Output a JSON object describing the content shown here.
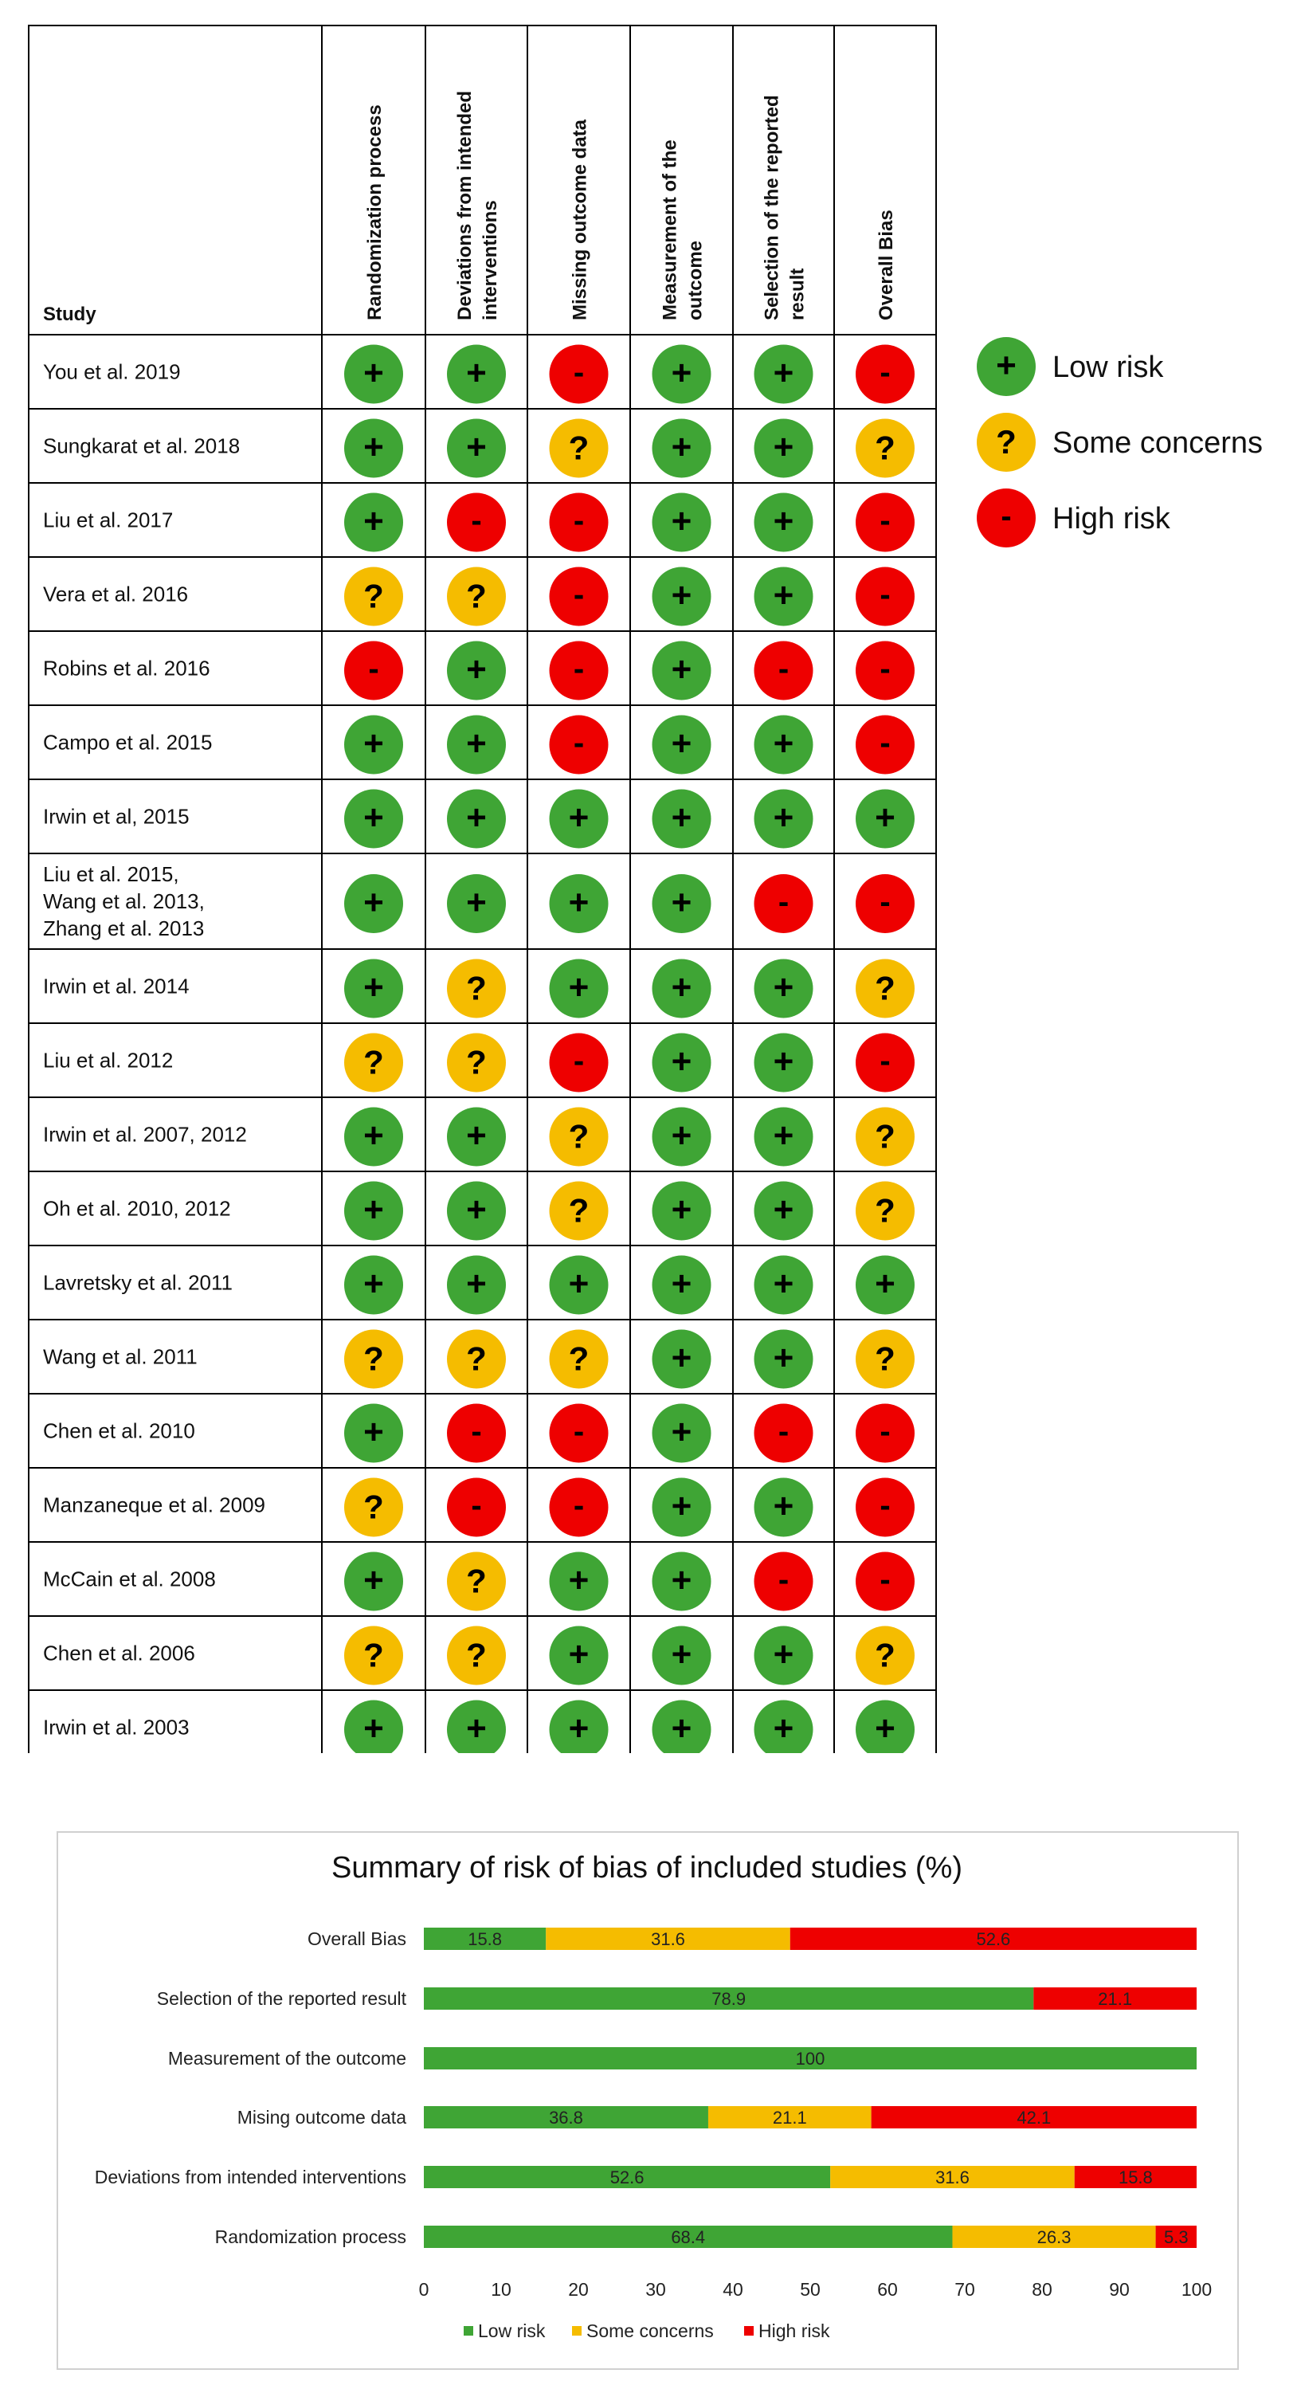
{
  "colors": {
    "low": "#3fa535",
    "some": "#f5bc00",
    "high": "#ee0000",
    "grid": "#000000"
  },
  "rob_table": {
    "study_header": "Study",
    "domains": [
      [
        "Randomization process"
      ],
      [
        "Deviations from intended",
        "interventions"
      ],
      [
        "Missing outcome data"
      ],
      [
        "Measurement of the",
        "outcome"
      ],
      [
        "Selection of the reported",
        "result"
      ],
      [
        "Overall Bias"
      ]
    ],
    "symbols": {
      "low": "+",
      "some": "?",
      "high": "-"
    },
    "rows": [
      {
        "study": [
          "You et al. 2019"
        ],
        "judgements": [
          "low",
          "low",
          "high",
          "low",
          "low",
          "high"
        ]
      },
      {
        "study": [
          "Sungkarat et al. 2018"
        ],
        "judgements": [
          "low",
          "low",
          "some",
          "low",
          "low",
          "some"
        ]
      },
      {
        "study": [
          "Liu et al. 2017"
        ],
        "judgements": [
          "low",
          "high",
          "high",
          "low",
          "low",
          "high"
        ]
      },
      {
        "study": [
          "Vera et al. 2016"
        ],
        "judgements": [
          "some",
          "some",
          "high",
          "low",
          "low",
          "high"
        ]
      },
      {
        "study": [
          "Robins et al. 2016"
        ],
        "judgements": [
          "high",
          "low",
          "high",
          "low",
          "high",
          "high"
        ]
      },
      {
        "study": [
          "Campo et al. 2015"
        ],
        "judgements": [
          "low",
          "low",
          "high",
          "low",
          "low",
          "high"
        ]
      },
      {
        "study": [
          "Irwin et al, 2015"
        ],
        "judgements": [
          "low",
          "low",
          "low",
          "low",
          "low",
          "low"
        ]
      },
      {
        "study": [
          "Liu et al. 2015,",
          "Wang et al. 2013,",
          "Zhang et al. 2013"
        ],
        "judgements": [
          "low",
          "low",
          "low",
          "low",
          "high",
          "high"
        ]
      },
      {
        "study": [
          "Irwin et al. 2014"
        ],
        "judgements": [
          "low",
          "some",
          "low",
          "low",
          "low",
          "some"
        ]
      },
      {
        "study": [
          "Liu et al. 2012"
        ],
        "judgements": [
          "some",
          "some",
          "high",
          "low",
          "low",
          "high"
        ]
      },
      {
        "study": [
          "Irwin et al. 2007, 2012"
        ],
        "judgements": [
          "low",
          "low",
          "some",
          "low",
          "low",
          "some"
        ]
      },
      {
        "study": [
          "Oh et al. 2010, 2012"
        ],
        "judgements": [
          "low",
          "low",
          "some",
          "low",
          "low",
          "some"
        ]
      },
      {
        "study": [
          "Lavretsky et al. 2011"
        ],
        "judgements": [
          "low",
          "low",
          "low",
          "low",
          "low",
          "low"
        ]
      },
      {
        "study": [
          "Wang et al. 2011"
        ],
        "judgements": [
          "some",
          "some",
          "some",
          "low",
          "low",
          "some"
        ]
      },
      {
        "study": [
          "Chen et al. 2010"
        ],
        "judgements": [
          "low",
          "high",
          "high",
          "low",
          "high",
          "high"
        ]
      },
      {
        "study": [
          "Manzaneque et al. 2009"
        ],
        "judgements": [
          "some",
          "high",
          "high",
          "low",
          "low",
          "high"
        ]
      },
      {
        "study": [
          "McCain et al. 2008"
        ],
        "judgements": [
          "low",
          "some",
          "low",
          "low",
          "high",
          "high"
        ]
      },
      {
        "study": [
          "Chen et al. 2006"
        ],
        "judgements": [
          "some",
          "some",
          "low",
          "low",
          "low",
          "some"
        ]
      },
      {
        "study": [
          "Irwin et al. 2003"
        ],
        "judgements": [
          "low",
          "low",
          "low",
          "low",
          "low",
          "low"
        ]
      }
    ],
    "legend": [
      {
        "key": "low",
        "label": "Low risk"
      },
      {
        "key": "some",
        "label": "Some concerns"
      },
      {
        "key": "high",
        "label": "High risk"
      }
    ]
  },
  "chart_data": {
    "type": "bar",
    "orientation": "horizontal",
    "stacked": true,
    "title": "Summary of risk of bias of included studies (%)",
    "categories": [
      "Overall Bias",
      "Selection of the reported result",
      "Measurement of the outcome",
      "Mising outcome data",
      "Deviations from intended interventions",
      "Randomization process"
    ],
    "series": [
      {
        "name": "Low risk",
        "key": "low",
        "values": [
          15.8,
          78.9,
          100,
          36.8,
          52.6,
          68.4
        ]
      },
      {
        "name": "Some concerns",
        "key": "some",
        "values": [
          31.6,
          0,
          0,
          21.1,
          31.6,
          26.3
        ]
      },
      {
        "name": "High risk",
        "key": "high",
        "values": [
          52.6,
          21.1,
          0,
          42.1,
          15.8,
          5.3
        ]
      }
    ],
    "value_labels": [
      [
        "15.8",
        "31.6",
        "52.6"
      ],
      [
        "78.9",
        "",
        "21.1"
      ],
      [
        "100",
        "",
        ""
      ],
      [
        "36.8",
        "21.1",
        "42.1"
      ],
      [
        "52.6",
        "31.6",
        "15.8"
      ],
      [
        "68.4",
        "26.3",
        "5.3"
      ]
    ],
    "xlim": [
      0,
      100
    ],
    "xticks": [
      0,
      10,
      20,
      30,
      40,
      50,
      60,
      70,
      80,
      90,
      100
    ],
    "grid": false,
    "legend_position": "bottom"
  }
}
